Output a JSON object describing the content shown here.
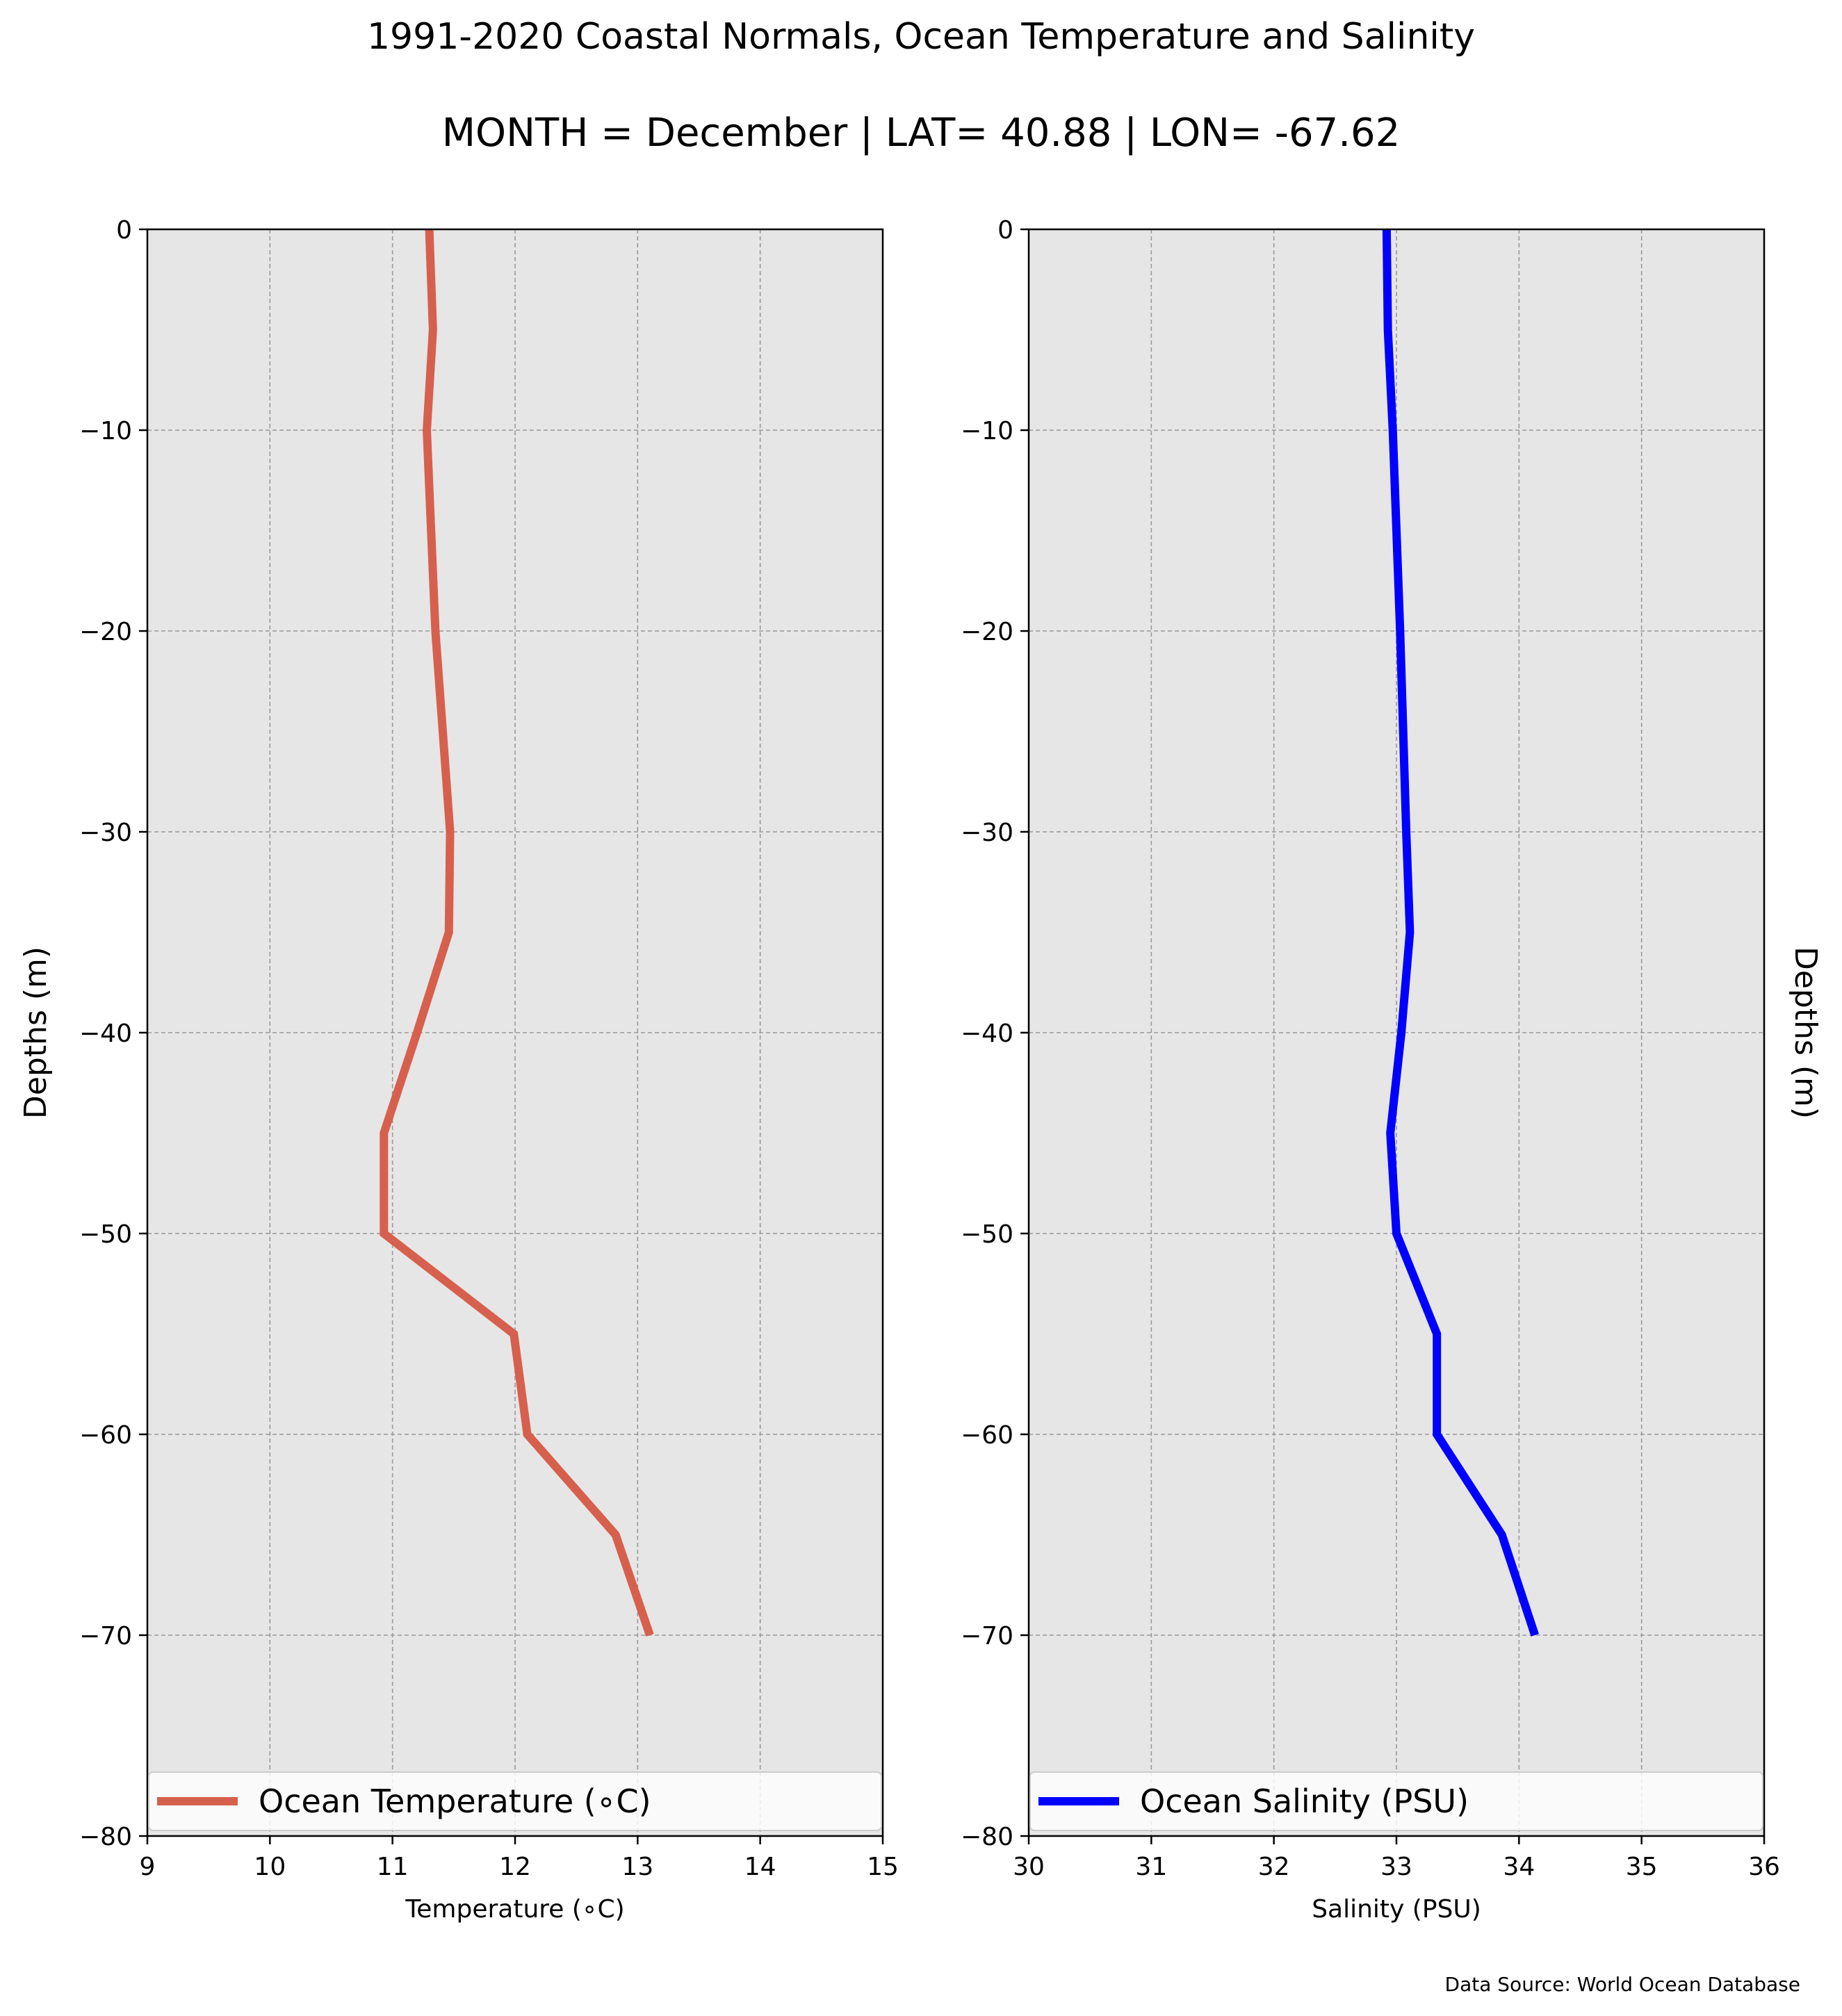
{
  "title": "1991-2020 Coastal Normals, Ocean Temperature and Salinity",
  "subtitle": "MONTH = December | LAT= 40.88 | LON= -67.62",
  "source_note": "Data Source: World Ocean Database",
  "colors": {
    "temperature_line": "#d6604d",
    "salinity_line": "#0000ff",
    "axes_background": "#e6e6e6",
    "grid": "#999999"
  },
  "chart_data": [
    {
      "type": "line",
      "xlabel": "Temperature ($^\\circ$C)",
      "xlabel_display": "Temperature (∘C)",
      "ylabel": "Depths (m)",
      "ylabel_side": "left",
      "xlim": [
        9,
        15
      ],
      "ylim": [
        -80,
        0
      ],
      "xticks": [
        "9",
        "10",
        "11",
        "12",
        "13",
        "14",
        "15"
      ],
      "yticks": [
        "0",
        "−10",
        "−20",
        "−30",
        "−40",
        "−50",
        "−60",
        "−70",
        "−80"
      ],
      "grid": true,
      "legend_position": "lower",
      "series": [
        {
          "name": "Ocean Temperature (∘C)",
          "x": [
            11.3,
            11.33,
            11.28,
            11.35,
            11.47,
            11.46,
            11.2,
            10.93,
            10.93,
            11.99,
            12.1,
            12.82,
            13.1
          ],
          "y": [
            0,
            -5,
            -10,
            -20,
            -30,
            -35,
            -40,
            -45,
            -50,
            -55,
            -60,
            -65,
            -70
          ]
        }
      ]
    },
    {
      "type": "line",
      "xlabel": "Salinity (PSU)",
      "ylabel": "Depths (m)",
      "ylabel_side": "right",
      "xlim": [
        30,
        36
      ],
      "ylim": [
        -80,
        0
      ],
      "xticks": [
        "30",
        "31",
        "32",
        "33",
        "34",
        "35",
        "36"
      ],
      "yticks": [
        "0",
        "−10",
        "−20",
        "−30",
        "−40",
        "−50",
        "−60",
        "−70",
        "−80"
      ],
      "grid": true,
      "legend_position": "lower",
      "series": [
        {
          "name": "Ocean Salinity (PSU)",
          "x": [
            32.92,
            32.93,
            32.97,
            33.03,
            33.08,
            33.11,
            33.04,
            32.95,
            33.0,
            33.33,
            33.33,
            33.86,
            34.13
          ],
          "y": [
            0,
            -5,
            -10,
            -20,
            -30,
            -35,
            -40,
            -45,
            -50,
            -55,
            -60,
            -65,
            -70
          ]
        }
      ]
    }
  ]
}
